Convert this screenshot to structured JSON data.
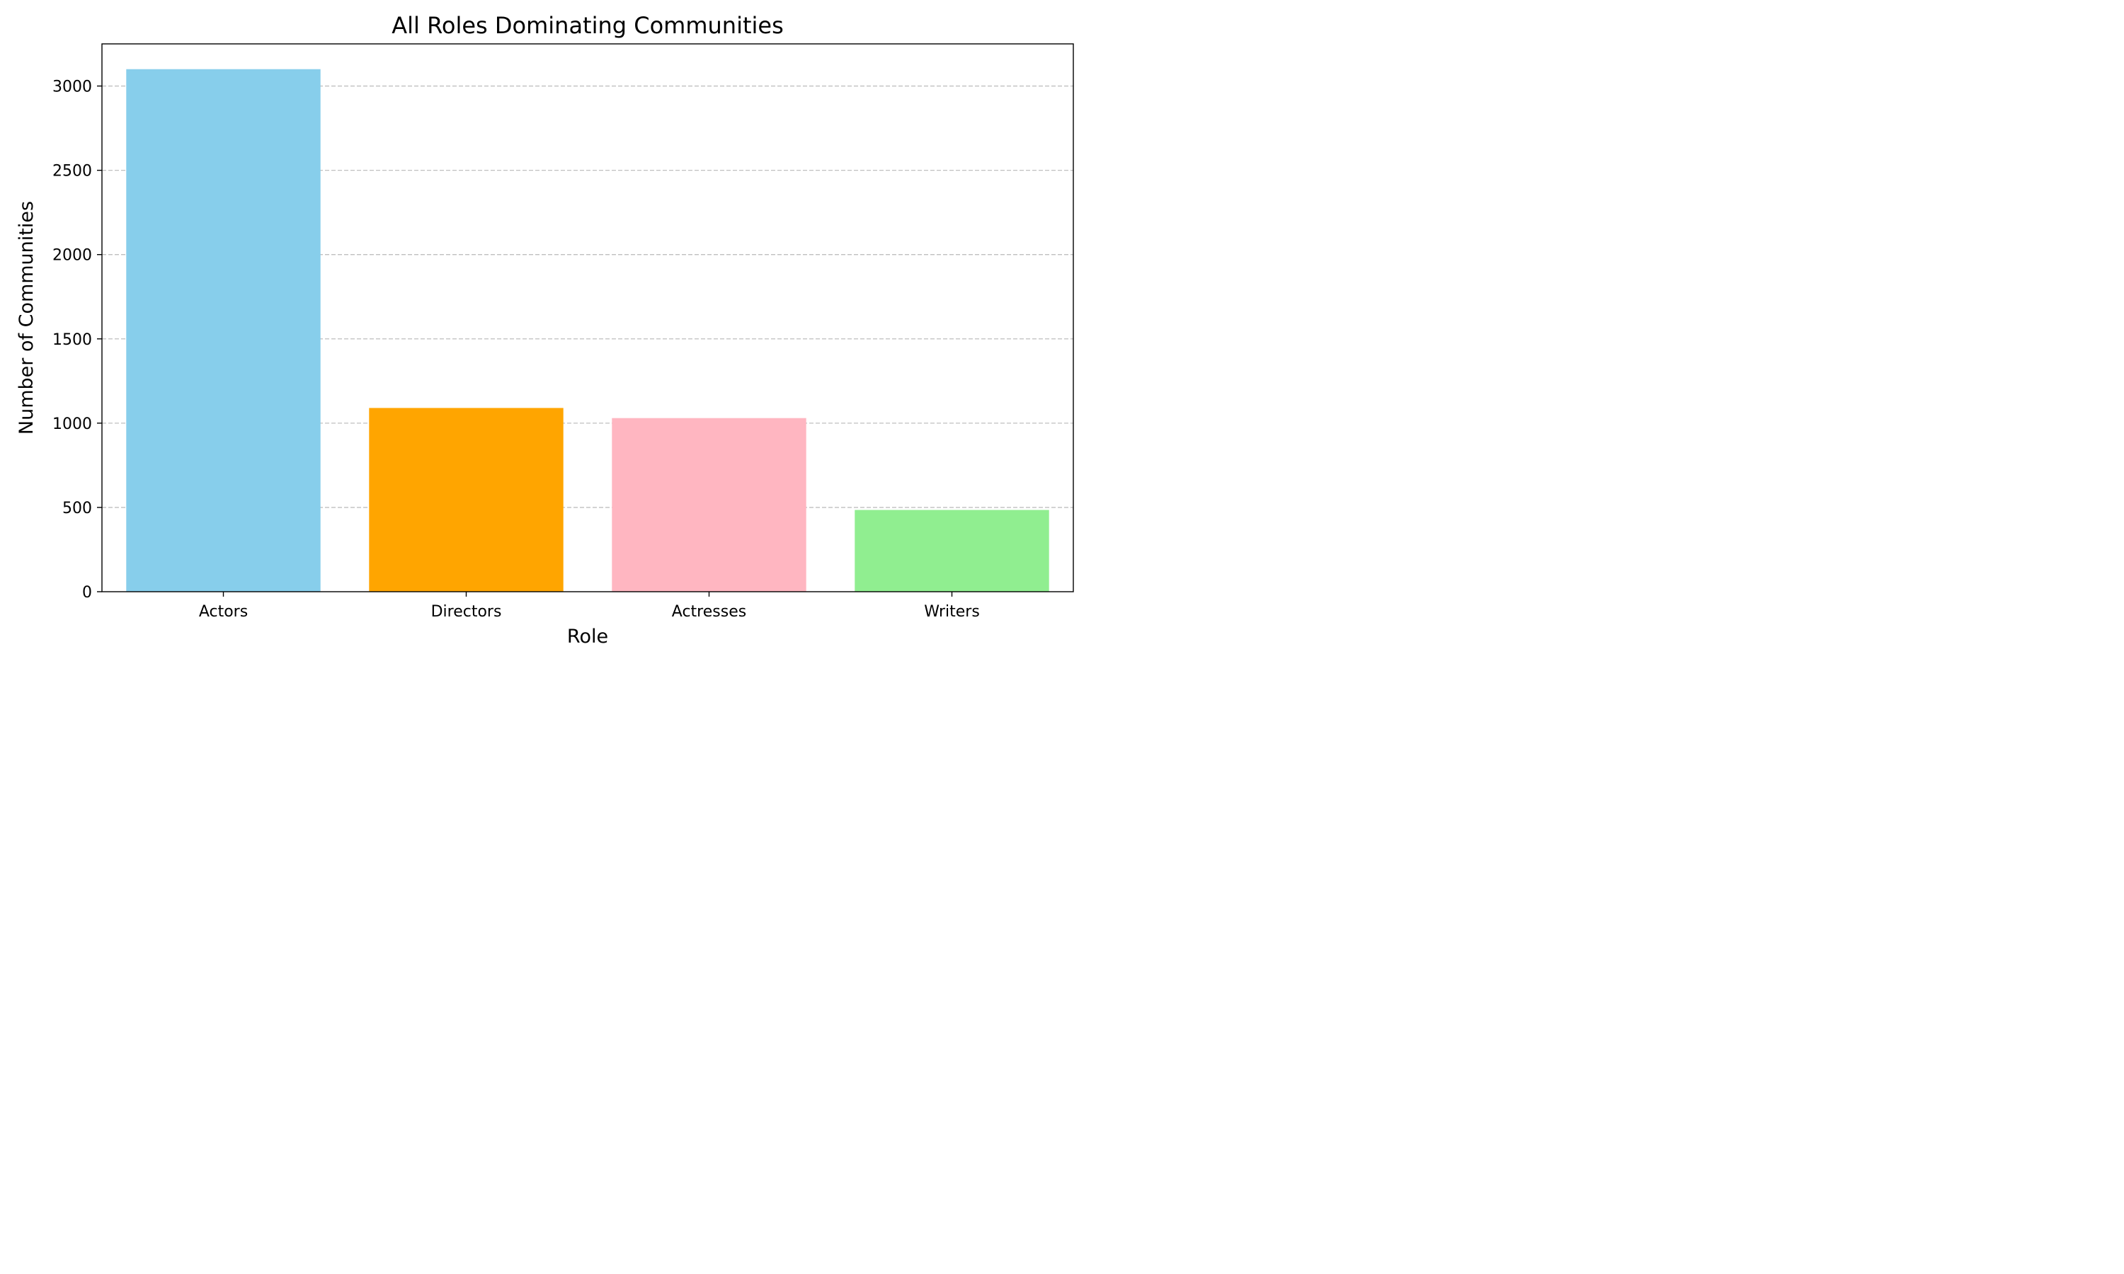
{
  "chart_data": {
    "type": "bar",
    "title": "All Roles Dominating Communities",
    "xlabel": "Role",
    "ylabel": "Number of Communities",
    "categories": [
      "Actors",
      "Directors",
      "Actresses",
      "Writers"
    ],
    "values": [
      3100,
      1090,
      1030,
      485
    ],
    "colors": [
      "#87ceeb",
      "#ffa500",
      "#ffb6c1",
      "#90ee90"
    ],
    "ylim": [
      0,
      3250
    ],
    "yticks": [
      0,
      500,
      1000,
      1500,
      2000,
      2500,
      3000
    ],
    "grid": {
      "axis": "y",
      "style": "dashed",
      "color": "#bfbfbf"
    },
    "legend": "none"
  }
}
